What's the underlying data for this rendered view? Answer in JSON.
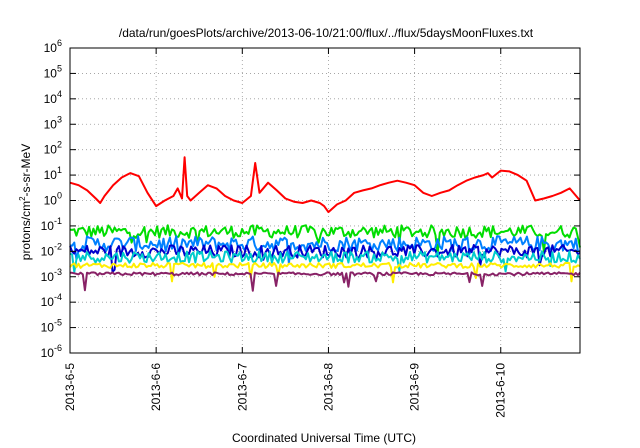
{
  "chart_data": {
    "type": "line",
    "title": "/data/run/goesPlots/archive/2013-06-10/21:00/flux/../flux/5daysMoonFluxes.txt",
    "xlabel": "Coordinated Universal Time (UTC)",
    "ylabel_main": "protons/cm",
    "ylabel_sup": "2",
    "ylabel_tail": "-s-sr-MeV",
    "x_ticks": [
      "2013-6-5",
      "2013-6-6",
      "2013-6-7",
      "2013-6-8",
      "2013-6-9",
      "2013-6-10"
    ],
    "x_range_days": [
      0,
      5.92
    ],
    "y_scale": "log",
    "ylim": [
      1e-06,
      1000000.0
    ],
    "y_tick_exponents": [
      -6,
      -5,
      -4,
      -3,
      -2,
      -1,
      0,
      1,
      2,
      3,
      4,
      5,
      6
    ],
    "grid": true,
    "series": [
      {
        "color": "#ff0000",
        "x": [
          0,
          0.1,
          0.2,
          0.3,
          0.35,
          0.4,
          0.5,
          0.6,
          0.7,
          0.8,
          0.9,
          1.0,
          1.1,
          1.2,
          1.25,
          1.3,
          1.33,
          1.36,
          1.4,
          1.5,
          1.6,
          1.7,
          1.8,
          1.9,
          2.0,
          2.1,
          2.15,
          2.2,
          2.3,
          2.4,
          2.5,
          2.6,
          2.7,
          2.8,
          2.9,
          2.95,
          3.0,
          3.1,
          3.2,
          3.3,
          3.4,
          3.5,
          3.6,
          3.7,
          3.8,
          3.9,
          4.0,
          4.1,
          4.2,
          4.3,
          4.4,
          4.5,
          4.6,
          4.7,
          4.8,
          4.85,
          4.9,
          5.0,
          5.1,
          5.2,
          5.3,
          5.4,
          5.5,
          5.6,
          5.7,
          5.8,
          5.92
        ],
        "values": [
          5,
          4,
          2.5,
          1.2,
          0.8,
          1.5,
          4,
          8,
          12,
          9,
          2,
          0.6,
          1.0,
          1.5,
          3,
          1.2,
          50,
          1.5,
          1.0,
          2,
          4,
          3,
          1.5,
          1.0,
          0.8,
          1.5,
          30,
          2,
          5,
          2.5,
          1.2,
          0.9,
          0.8,
          1.0,
          0.8,
          0.6,
          0.35,
          0.7,
          1.0,
          2,
          2.5,
          3,
          4,
          5,
          6,
          5,
          4,
          2,
          1.5,
          2,
          2.5,
          4,
          6,
          8,
          10,
          12,
          8,
          15,
          14,
          10,
          6,
          1.0,
          1.2,
          1.5,
          2,
          3,
          1.0
        ]
      },
      {
        "color": "#00dd00",
        "base": 0.06,
        "spread": 0.5
      },
      {
        "color": "#0080ff",
        "base": 0.02,
        "spread": 0.6
      },
      {
        "color": "#0000cc",
        "base": 0.01,
        "spread": 0.5
      },
      {
        "color": "#00cccc",
        "base": 0.006,
        "spread": 0.45
      },
      {
        "color": "#ffee00",
        "base": 0.0028,
        "spread": 0.2
      },
      {
        "color": "#882266",
        "base": 0.0013,
        "spread": 0.12
      }
    ]
  }
}
